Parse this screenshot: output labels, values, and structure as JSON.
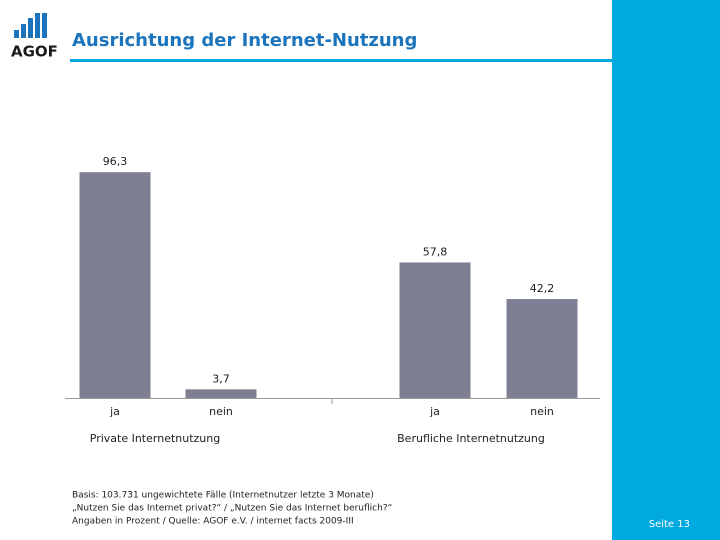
{
  "logo": "AGOF",
  "chart_data": {
    "type": "bar",
    "title": "Ausrichtung der Internet-Nutzung",
    "categories": [
      "ja",
      "nein",
      "ja",
      "nein"
    ],
    "groups": [
      "Private Internetnutzung",
      "Berufliche Internetnutzung"
    ],
    "values": [
      96.3,
      3.7,
      57.8,
      42.2
    ],
    "value_labels": [
      "96,3",
      "3,7",
      "57,8",
      "42,2"
    ],
    "color": "#7f7f94"
  },
  "footnotes": [
    "Basis: 103.731 ungewichtete Fälle (Internetnutzer letzte 3 Monate)",
    "„Nutzen Sie das Internet privat?“ / „Nutzen Sie das Internet beruflich?“",
    "Angaben in Prozent / Quelle: AGOF e.V. / internet facts 2009-III"
  ],
  "page_label": "Seite 13"
}
